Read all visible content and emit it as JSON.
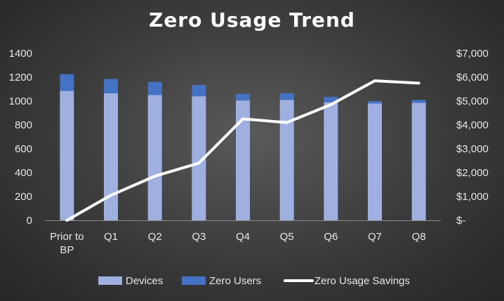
{
  "chart_data": {
    "type": "bar",
    "title": "Zero Usage Trend",
    "categories": [
      [
        "Prior to",
        "BP"
      ],
      [
        "Q1"
      ],
      [
        "Q2"
      ],
      [
        "Q3"
      ],
      [
        "Q4"
      ],
      [
        "Q5"
      ],
      [
        "Q6"
      ],
      [
        "Q7"
      ],
      [
        "Q8"
      ]
    ],
    "series": [
      {
        "name": "Devices",
        "type": "stacked-bar",
        "axis": "left",
        "color": "#9fb0e0",
        "values": [
          1085,
          1065,
          1050,
          1040,
          1005,
          1010,
          990,
          980,
          985
        ]
      },
      {
        "name": "Zero Users",
        "type": "stacked-bar",
        "axis": "left",
        "color": "#4472c4",
        "values": [
          140,
          120,
          110,
          95,
          55,
          55,
          45,
          20,
          25
        ]
      },
      {
        "name": "Zero Usage Savings",
        "type": "line",
        "axis": "right",
        "color": "#ffffff",
        "values": [
          0,
          1050,
          1850,
          2400,
          4250,
          4100,
          4850,
          5850,
          5750
        ]
      }
    ],
    "y_left": {
      "min": 0,
      "max": 1400,
      "ticks": [
        "0",
        "200",
        "400",
        "600",
        "800",
        "1000",
        "1200",
        "1400"
      ]
    },
    "y_right": {
      "min": 0,
      "max": 7000,
      "ticks": [
        "$-",
        "$1,000",
        "$2,000",
        "$3,000",
        "$4,000",
        "$5,000",
        "$6,000",
        "$7,000"
      ]
    },
    "grid": false,
    "legend_position": "bottom"
  }
}
